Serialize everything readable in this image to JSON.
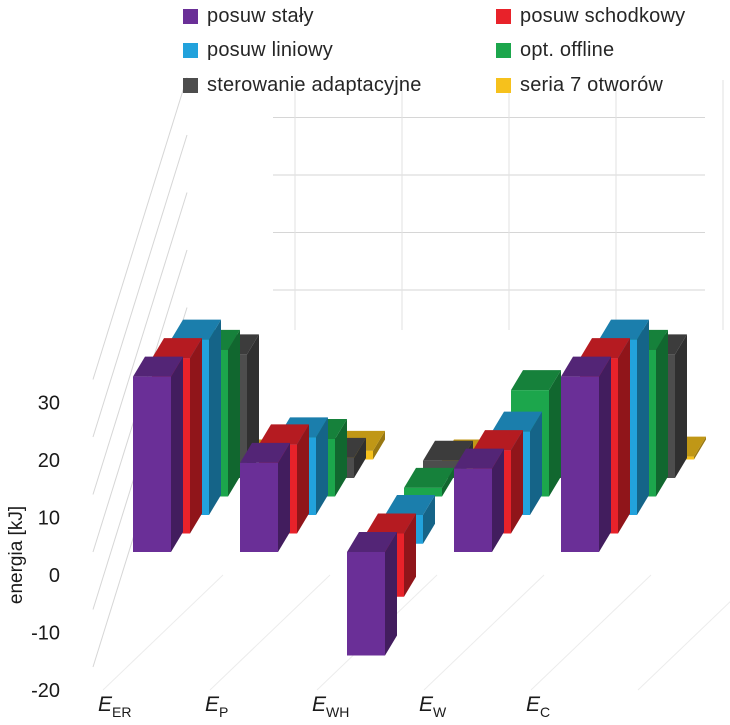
{
  "chart_data": {
    "type": "bar",
    "variant": "3d-column",
    "title": "",
    "xlabel": "",
    "ylabel": "energia [kJ]",
    "ylim": [
      -20,
      30
    ],
    "yticks": [
      -20,
      -10,
      0,
      10,
      20,
      30
    ],
    "grid": true,
    "legend_position": "top",
    "categories": [
      {
        "main": "E",
        "sub": "ER"
      },
      {
        "main": "E",
        "sub": "P"
      },
      {
        "main": "E",
        "sub": "WH"
      },
      {
        "main": "E",
        "sub": "W"
      },
      {
        "main": "E",
        "sub": "C"
      }
    ],
    "series": [
      {
        "name": "posuw stały",
        "color": "#6a2f97",
        "values": [
          30.5,
          15.5,
          -18,
          14.5,
          30.5
        ]
      },
      {
        "name": "posuw schodkowy",
        "color": "#e8222a",
        "values": [
          30.5,
          15.5,
          -11,
          14.5,
          30.5
        ]
      },
      {
        "name": "posuw liniowy",
        "color": "#22a2dc",
        "values": [
          30.5,
          13.5,
          -5,
          14.5,
          30.5
        ]
      },
      {
        "name": "opt. offline",
        "color": "#1ca64c",
        "values": [
          25.5,
          10,
          1.5,
          18.5,
          25.5
        ]
      },
      {
        "name": "sterowanie adaptacyjne",
        "color": "#4d4d4d",
        "values": [
          21.5,
          3.5,
          3,
          9.5,
          21.5
        ]
      },
      {
        "name": "seria 7 otworów",
        "color": "#f6c11c",
        "values": [
          -0.5,
          1.5,
          -2.5,
          -0.5,
          0.5
        ]
      }
    ]
  }
}
